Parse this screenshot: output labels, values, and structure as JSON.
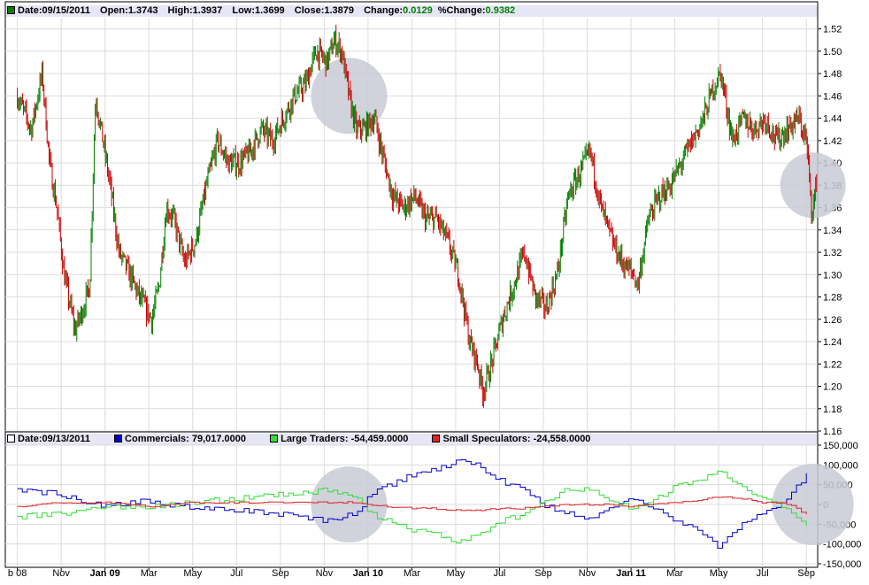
{
  "price_panel": {
    "legend": {
      "date_label": "Date:",
      "date": "09/15/2011",
      "open_label": "Open:",
      "open": "1.3743",
      "high_label": "High:",
      "high": "1.3937",
      "low_label": "Low:",
      "low": "1.3699",
      "close_label": "Close:",
      "close": "1.3879",
      "change_label": "Change:",
      "change": "0.0129",
      "pctchange_label": "%Change:",
      "pctchange": "0.9382"
    }
  },
  "cot_panel": {
    "legend": {
      "date_label": "Date:",
      "date": "09/13/2011",
      "commercials_label": "Commercials:",
      "commercials": "79,017.0000",
      "large_label": "Large Traders:",
      "large": "-54,459.0000",
      "small_label": "Small Speculators:",
      "small": "-24,558.0000"
    }
  },
  "colors": {
    "up_bar": "#008000",
    "down_bar": "#cc0000",
    "commercials": "#0000cc",
    "large_traders": "#33dd33",
    "small_speculators": "#dd2222",
    "grid": "#dcdcdc",
    "legend_bg": "#e6e6f6",
    "highlight": "#c8cad6"
  },
  "chart_data": [
    {
      "type": "ohlc",
      "y_ticks": [
        "1.52",
        "1.50",
        "1.48",
        "1.46",
        "1.44",
        "1.42",
        "1.40",
        "1.38",
        "1.36",
        "1.34",
        "1.32",
        "1.30",
        "1.28",
        "1.26",
        "1.24",
        "1.22",
        "1.20",
        "1.18",
        "1.16"
      ],
      "ylim": [
        1.16,
        1.53
      ],
      "x_ticks": [
        "b 08",
        "Nov",
        "Jan 09",
        "Mar",
        "May",
        "Jul",
        "Sep",
        "Nov",
        "Jan 10",
        "Mar",
        "May",
        "Jul",
        "Sep",
        "Nov",
        "Jan 11",
        "Mar",
        "May",
        "Jul",
        "Sep"
      ],
      "x_range": [
        "2008-09",
        "2011-09-15"
      ],
      "grid": true,
      "close_path": [
        {
          "date": "2008-09",
          "value": 1.46
        },
        {
          "date": "2008-09-20",
          "value": 1.43
        },
        {
          "date": "2008-10-05",
          "value": 1.48
        },
        {
          "date": "2008-10-15",
          "value": 1.4
        },
        {
          "date": "2008-10-25",
          "value": 1.36
        },
        {
          "date": "2008-11-05",
          "value": 1.3
        },
        {
          "date": "2008-11-20",
          "value": 1.25
        },
        {
          "date": "2008-12-01",
          "value": 1.27
        },
        {
          "date": "2008-12-10",
          "value": 1.29
        },
        {
          "date": "2008-12-18",
          "value": 1.46
        },
        {
          "date": "2008-12-28",
          "value": 1.42
        },
        {
          "date": "2009-01-08",
          "value": 1.38
        },
        {
          "date": "2009-01-20",
          "value": 1.32
        },
        {
          "date": "2009-02-05",
          "value": 1.3
        },
        {
          "date": "2009-02-18",
          "value": 1.28
        },
        {
          "date": "2009-03-05",
          "value": 1.26
        },
        {
          "date": "2009-03-15",
          "value": 1.29
        },
        {
          "date": "2009-03-25",
          "value": 1.36
        },
        {
          "date": "2009-04-05",
          "value": 1.35
        },
        {
          "date": "2009-04-20",
          "value": 1.31
        },
        {
          "date": "2009-05-05",
          "value": 1.33
        },
        {
          "date": "2009-05-20",
          "value": 1.38
        },
        {
          "date": "2009-06-05",
          "value": 1.42
        },
        {
          "date": "2009-06-20",
          "value": 1.4
        },
        {
          "date": "2009-07-05",
          "value": 1.4
        },
        {
          "date": "2009-07-20",
          "value": 1.41
        },
        {
          "date": "2009-08-05",
          "value": 1.43
        },
        {
          "date": "2009-08-20",
          "value": 1.42
        },
        {
          "date": "2009-09-05",
          "value": 1.44
        },
        {
          "date": "2009-09-20",
          "value": 1.46
        },
        {
          "date": "2009-10-05",
          "value": 1.47
        },
        {
          "date": "2009-10-20",
          "value": 1.5
        },
        {
          "date": "2009-11-05",
          "value": 1.49
        },
        {
          "date": "2009-11-15",
          "value": 1.51
        },
        {
          "date": "2009-11-25",
          "value": 1.5
        },
        {
          "date": "2009-12-05",
          "value": 1.46
        },
        {
          "date": "2009-12-15",
          "value": 1.43
        },
        {
          "date": "2009-12-25",
          "value": 1.43
        },
        {
          "date": "2010-01-10",
          "value": 1.44
        },
        {
          "date": "2010-01-20",
          "value": 1.41
        },
        {
          "date": "2010-02-05",
          "value": 1.37
        },
        {
          "date": "2010-02-20",
          "value": 1.36
        },
        {
          "date": "2010-03-05",
          "value": 1.37
        },
        {
          "date": "2010-03-20",
          "value": 1.35
        },
        {
          "date": "2010-04-05",
          "value": 1.35
        },
        {
          "date": "2010-04-20",
          "value": 1.33
        },
        {
          "date": "2010-05-05",
          "value": 1.3
        },
        {
          "date": "2010-05-20",
          "value": 1.24
        },
        {
          "date": "2010-06-01",
          "value": 1.22
        },
        {
          "date": "2010-06-08",
          "value": 1.195
        },
        {
          "date": "2010-06-20",
          "value": 1.22
        },
        {
          "date": "2010-07-05",
          "value": 1.26
        },
        {
          "date": "2010-07-20",
          "value": 1.29
        },
        {
          "date": "2010-08-05",
          "value": 1.32
        },
        {
          "date": "2010-08-20",
          "value": 1.28
        },
        {
          "date": "2010-09-05",
          "value": 1.27
        },
        {
          "date": "2010-09-20",
          "value": 1.3
        },
        {
          "date": "2010-10-05",
          "value": 1.37
        },
        {
          "date": "2010-10-20",
          "value": 1.39
        },
        {
          "date": "2010-11-05",
          "value": 1.41
        },
        {
          "date": "2010-11-20",
          "value": 1.36
        },
        {
          "date": "2010-12-05",
          "value": 1.33
        },
        {
          "date": "2010-12-20",
          "value": 1.31
        },
        {
          "date": "2011-01-05",
          "value": 1.3
        },
        {
          "date": "2011-01-10",
          "value": 1.29
        },
        {
          "date": "2011-01-25",
          "value": 1.35
        },
        {
          "date": "2011-02-10",
          "value": 1.37
        },
        {
          "date": "2011-02-25",
          "value": 1.38
        },
        {
          "date": "2011-03-10",
          "value": 1.4
        },
        {
          "date": "2011-03-25",
          "value": 1.42
        },
        {
          "date": "2011-04-10",
          "value": 1.44
        },
        {
          "date": "2011-04-25",
          "value": 1.47
        },
        {
          "date": "2011-05-04",
          "value": 1.48
        },
        {
          "date": "2011-05-20",
          "value": 1.42
        },
        {
          "date": "2011-06-05",
          "value": 1.44
        },
        {
          "date": "2011-06-20",
          "value": 1.43
        },
        {
          "date": "2011-07-05",
          "value": 1.44
        },
        {
          "date": "2011-07-20",
          "value": 1.42
        },
        {
          "date": "2011-08-05",
          "value": 1.43
        },
        {
          "date": "2011-08-20",
          "value": 1.44
        },
        {
          "date": "2011-09-01",
          "value": 1.42
        },
        {
          "date": "2011-09-08",
          "value": 1.36
        },
        {
          "date": "2011-09-12",
          "value": 1.365
        },
        {
          "date": "2011-09-15",
          "value": 1.3879
        }
      ],
      "highlights": [
        {
          "date": "2009-12-05",
          "value": 1.46
        },
        {
          "date": "2011-09-10",
          "value": 1.38
        }
      ]
    },
    {
      "type": "step-line",
      "y_ticks": [
        "150,000",
        "100,000",
        "50,000",
        "0",
        "-50,000",
        "-100,000",
        "-150,000"
      ],
      "ylim": [
        -150000,
        150000
      ],
      "series": [
        {
          "name": "Commercials",
          "points": [
            [
              "2008-09",
              40000
            ],
            [
              "2008-11",
              25000
            ],
            [
              "2009-01",
              -5000
            ],
            [
              "2009-03",
              10000
            ],
            [
              "2009-05",
              -10000
            ],
            [
              "2009-07",
              -15000
            ],
            [
              "2009-09",
              -25000
            ],
            [
              "2009-11",
              -40000
            ],
            [
              "2009-12-15",
              -25000
            ],
            [
              "2010-01",
              20000
            ],
            [
              "2010-02",
              50000
            ],
            [
              "2010-03",
              75000
            ],
            [
              "2010-04",
              85000
            ],
            [
              "2010-05",
              110000
            ],
            [
              "2010-06",
              100000
            ],
            [
              "2010-07",
              60000
            ],
            [
              "2010-08",
              40000
            ],
            [
              "2010-09",
              0
            ],
            [
              "2010-10",
              -20000
            ],
            [
              "2010-11",
              -40000
            ],
            [
              "2010-12",
              -10000
            ],
            [
              "2011-01",
              20000
            ],
            [
              "2011-02",
              -10000
            ],
            [
              "2011-03",
              -40000
            ],
            [
              "2011-04",
              -60000
            ],
            [
              "2011-05",
              -110000
            ],
            [
              "2011-06",
              -50000
            ],
            [
              "2011-07",
              -20000
            ],
            [
              "2011-08",
              0
            ],
            [
              "2011-09",
              79017
            ]
          ]
        },
        {
          "name": "Large Traders",
          "points": [
            [
              "2008-09",
              -30000
            ],
            [
              "2008-11",
              -25000
            ],
            [
              "2009-01",
              -5000
            ],
            [
              "2009-03",
              -5000
            ],
            [
              "2009-05",
              5000
            ],
            [
              "2009-07",
              15000
            ],
            [
              "2009-09",
              25000
            ],
            [
              "2009-11",
              35000
            ],
            [
              "2009-12-15",
              20000
            ],
            [
              "2010-01",
              -20000
            ],
            [
              "2010-02",
              -45000
            ],
            [
              "2010-03",
              -65000
            ],
            [
              "2010-04",
              -70000
            ],
            [
              "2010-05",
              -95000
            ],
            [
              "2010-06",
              -80000
            ],
            [
              "2010-07",
              -45000
            ],
            [
              "2010-08",
              -25000
            ],
            [
              "2010-09",
              10000
            ],
            [
              "2010-10",
              35000
            ],
            [
              "2010-11",
              40000
            ],
            [
              "2010-12",
              15000
            ],
            [
              "2011-01",
              -10000
            ],
            [
              "2011-02",
              10000
            ],
            [
              "2011-03",
              45000
            ],
            [
              "2011-04",
              55000
            ],
            [
              "2011-05",
              90000
            ],
            [
              "2011-06",
              40000
            ],
            [
              "2011-07",
              15000
            ],
            [
              "2011-08",
              -5000
            ],
            [
              "2011-09",
              -54459
            ]
          ]
        },
        {
          "name": "Small Speculators",
          "points": [
            [
              "2008-09",
              -5000
            ],
            [
              "2008-11",
              5000
            ],
            [
              "2009-01",
              5000
            ],
            [
              "2009-03",
              -5000
            ],
            [
              "2009-05",
              5000
            ],
            [
              "2009-07",
              5000
            ],
            [
              "2009-09",
              5000
            ],
            [
              "2009-11",
              5000
            ],
            [
              "2009-12-15",
              5000
            ],
            [
              "2010-01",
              0
            ],
            [
              "2010-02",
              -5000
            ],
            [
              "2010-03",
              -10000
            ],
            [
              "2010-04",
              -10000
            ],
            [
              "2010-05",
              -15000
            ],
            [
              "2010-06",
              -15000
            ],
            [
              "2010-07",
              -10000
            ],
            [
              "2010-08",
              -10000
            ],
            [
              "2010-09",
              -5000
            ],
            [
              "2010-10",
              0
            ],
            [
              "2010-11",
              0
            ],
            [
              "2010-12",
              0
            ],
            [
              "2011-01",
              -5000
            ],
            [
              "2011-02",
              0
            ],
            [
              "2011-03",
              5000
            ],
            [
              "2011-04",
              10000
            ],
            [
              "2011-05",
              20000
            ],
            [
              "2011-06",
              15000
            ],
            [
              "2011-07",
              5000
            ],
            [
              "2011-08",
              5000
            ],
            [
              "2011-09",
              -24558
            ]
          ]
        }
      ],
      "highlights": [
        {
          "date": "2009-12-05",
          "value": 0
        },
        {
          "date": "2011-09-10",
          "value": 0
        }
      ]
    }
  ]
}
